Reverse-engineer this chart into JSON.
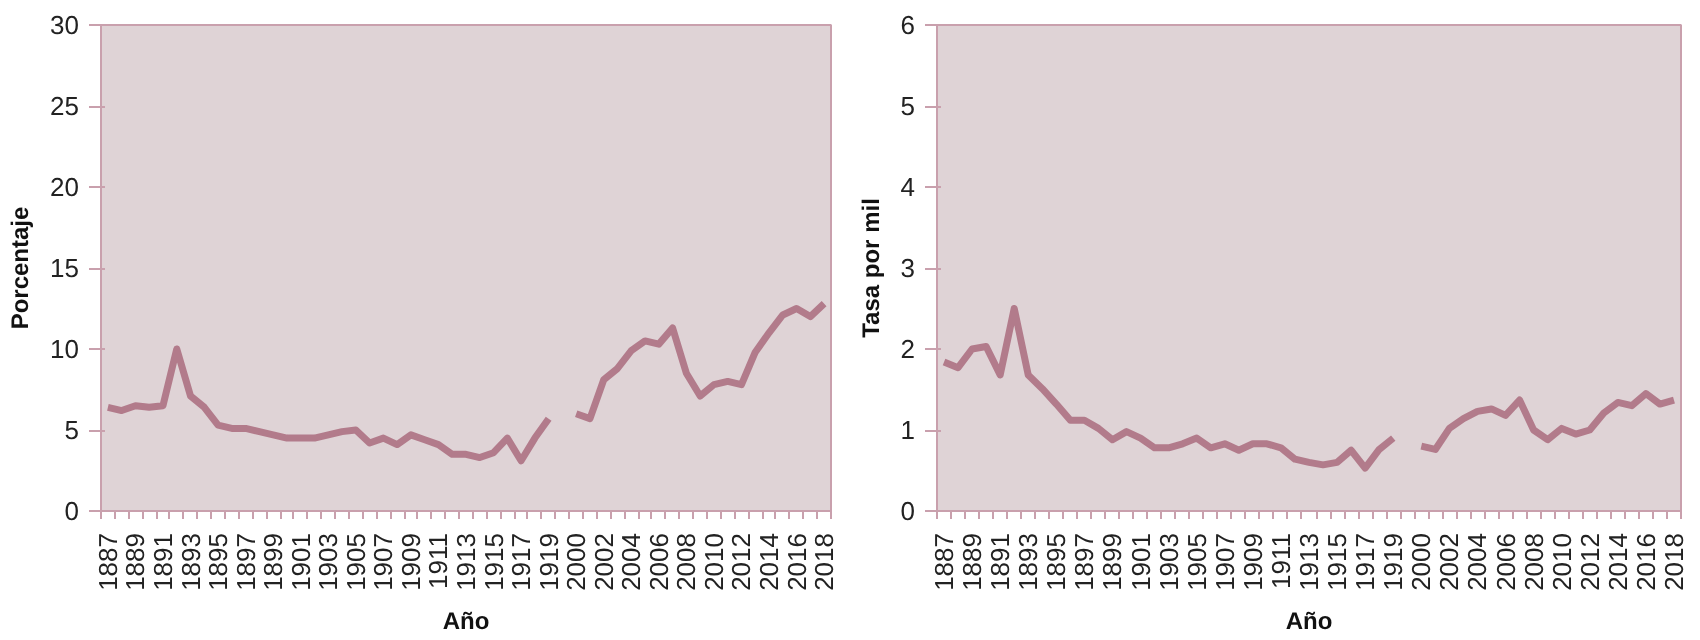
{
  "chart_data": [
    {
      "type": "line",
      "xlabel": "Año",
      "ylabel": "Porcentaje",
      "categories": [
        "1887",
        null,
        "1889",
        null,
        "1891",
        null,
        "1893",
        null,
        "1895",
        null,
        "1897",
        null,
        "1899",
        null,
        "1901",
        null,
        "1903",
        null,
        "1905",
        null,
        "1907",
        null,
        "1909",
        null,
        "1911",
        null,
        "1913",
        null,
        "1915",
        null,
        "1917",
        null,
        "1919",
        null,
        "2000",
        null,
        "2002",
        null,
        "2004",
        null,
        "2006",
        null,
        "2008",
        null,
        "2010",
        null,
        "2012",
        null,
        "2014",
        null,
        "2016",
        null,
        "2018"
      ],
      "series": [
        {
          "color": "#b27b8b",
          "values": [
            6.4,
            6.2,
            6.5,
            6.4,
            6.5,
            10.0,
            7.1,
            6.4,
            5.3,
            5.1,
            5.1,
            4.9,
            4.7,
            4.5,
            4.5,
            4.5,
            4.7,
            4.9,
            5.0,
            4.2,
            4.5,
            4.1,
            4.7,
            4.4,
            4.1,
            3.5,
            3.5,
            3.3,
            3.6,
            4.5,
            3.1,
            4.5,
            5.7,
            null,
            6.0,
            5.7,
            8.1,
            8.8,
            9.9,
            10.5,
            10.3,
            11.3,
            8.5,
            7.1,
            7.8,
            8.0,
            7.8,
            9.8,
            11.0,
            12.1,
            12.5,
            12.0,
            12.8
          ]
        }
      ],
      "ylim": [
        0,
        30
      ],
      "yticks": [
        0,
        5,
        10,
        15,
        20,
        25,
        30
      ],
      "grid": false,
      "line_style": "solid",
      "marker": "none"
    },
    {
      "type": "line",
      "xlabel": "Año",
      "ylabel": "Tasa por mil",
      "categories": [
        "1887",
        null,
        "1889",
        null,
        "1891",
        null,
        "1893",
        null,
        "1895",
        null,
        "1897",
        null,
        "1899",
        null,
        "1901",
        null,
        "1903",
        null,
        "1905",
        null,
        "1907",
        null,
        "1909",
        null,
        "1911",
        null,
        "1913",
        null,
        "1915",
        null,
        "1917",
        null,
        "1919",
        null,
        "2000",
        null,
        "2002",
        null,
        "2004",
        null,
        "2006",
        null,
        "2008",
        null,
        "2010",
        null,
        "2012",
        null,
        "2014",
        null,
        "2016",
        null,
        "2018"
      ],
      "series": [
        {
          "color": "#b27b8b",
          "values": [
            1.84,
            1.77,
            2.0,
            2.03,
            1.68,
            2.5,
            1.68,
            1.51,
            1.32,
            1.12,
            1.12,
            1.02,
            0.88,
            0.98,
            0.9,
            0.78,
            0.78,
            0.83,
            0.9,
            0.78,
            0.83,
            0.75,
            0.83,
            0.83,
            0.78,
            0.64,
            0.6,
            0.57,
            0.6,
            0.75,
            0.53,
            0.76,
            0.9,
            null,
            0.8,
            0.76,
            1.02,
            1.14,
            1.23,
            1.26,
            1.18,
            1.37,
            1.0,
            0.88,
            1.02,
            0.95,
            1.0,
            1.21,
            1.34,
            1.3,
            1.45,
            1.32,
            1.37
          ]
        }
      ],
      "ylim": [
        0,
        6
      ],
      "yticks": [
        0,
        1,
        2,
        3,
        4,
        5,
        6
      ],
      "grid": false,
      "line_style": "solid",
      "marker": "none"
    }
  ]
}
